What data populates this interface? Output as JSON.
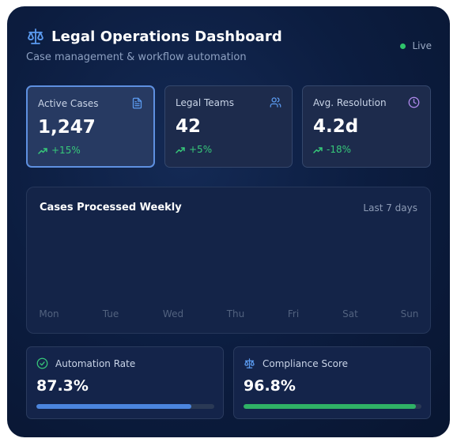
{
  "header": {
    "title": "Legal Operations Dashboard",
    "subtitle": "Case management & workflow automation",
    "status": "Live",
    "icon": "scale-icon"
  },
  "colors": {
    "accent_blue": "#5b9bf0",
    "positive_green": "#37c97a",
    "live_green": "#2fc46b",
    "purple": "#b48cf2",
    "automation_bar": "#4b85de",
    "compliance_bar": "#2fb266"
  },
  "stats": [
    {
      "label": "Active Cases",
      "value": "1,247",
      "change": "+15%",
      "icon": "document-icon"
    },
    {
      "label": "Legal Teams",
      "value": "42",
      "change": "+5%",
      "icon": "users-icon"
    },
    {
      "label": "Avg. Resolution",
      "value": "4.2d",
      "change": "-18%",
      "icon": "clock-icon"
    }
  ],
  "chart": {
    "title": "Cases Processed Weekly",
    "period": "Last 7 days",
    "days": [
      "Mon",
      "Tue",
      "Wed",
      "Thu",
      "Fri",
      "Sat",
      "Sun"
    ]
  },
  "metrics": [
    {
      "label": "Automation Rate",
      "value": "87.3%",
      "progress": 87.3,
      "icon": "check-circle-icon"
    },
    {
      "label": "Compliance Score",
      "value": "96.8%",
      "progress": 96.8,
      "icon": "scale-icon"
    }
  ]
}
